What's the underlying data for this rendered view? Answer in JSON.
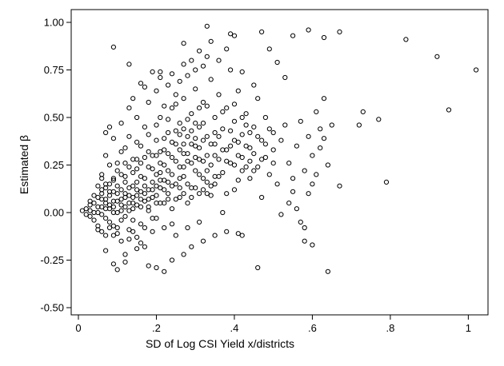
{
  "chart_data": {
    "type": "scatter",
    "title": "",
    "xlabel": "SD of Log CSI Yield x/districts",
    "ylabel": "Estimated β",
    "xlim": [
      0,
      1.03
    ],
    "ylim": [
      -0.5,
      1.0
    ],
    "x_ticks": [
      {
        "value": 0,
        "label": "0"
      },
      {
        "value": 0.2,
        "label": ".2"
      },
      {
        "value": 0.4,
        "label": ".4"
      },
      {
        "value": 0.6,
        "label": ".6"
      },
      {
        "value": 0.8,
        "label": ".8"
      },
      {
        "value": 1.0,
        "label": "1"
      }
    ],
    "y_ticks": [
      {
        "value": -0.5,
        "label": "-0.50"
      },
      {
        "value": -0.25,
        "label": "-0.25"
      },
      {
        "value": 0.0,
        "label": "0.00"
      },
      {
        "value": 0.25,
        "label": "0.25"
      },
      {
        "value": 0.5,
        "label": "0.50"
      },
      {
        "value": 0.75,
        "label": "0.75"
      },
      {
        "value": 1.0,
        "label": "1.00"
      }
    ],
    "grid": false,
    "marker": "hollow-circle",
    "marker_color": "#000000",
    "points": [
      [
        0.02,
        0.02
      ],
      [
        0.03,
        0.01
      ],
      [
        0.03,
        -0.02
      ],
      [
        0.04,
        0.05
      ],
      [
        0.04,
        -0.04
      ],
      [
        0.05,
        0.08
      ],
      [
        0.05,
        0.0
      ],
      [
        0.05,
        -0.07
      ],
      [
        0.06,
        0.12
      ],
      [
        0.06,
        0.03
      ],
      [
        0.06,
        -0.1
      ],
      [
        0.06,
        0.2
      ],
      [
        0.07,
        0.05
      ],
      [
        0.07,
        -0.03
      ],
      [
        0.07,
        0.3
      ],
      [
        0.07,
        0.15
      ],
      [
        0.08,
        0.09
      ],
      [
        0.08,
        -0.05
      ],
      [
        0.08,
        0.02
      ],
      [
        0.08,
        0.25
      ],
      [
        0.09,
        0.11
      ],
      [
        0.09,
        -0.12
      ],
      [
        0.09,
        0.06
      ],
      [
        0.09,
        0.18
      ],
      [
        0.1,
        0.0
      ],
      [
        0.1,
        0.14
      ],
      [
        0.1,
        -0.08
      ],
      [
        0.1,
        0.22
      ],
      [
        0.11,
        0.07
      ],
      [
        0.11,
        -0.15
      ],
      [
        0.11,
        0.32
      ],
      [
        0.11,
        0.04
      ],
      [
        0.12,
        0.1
      ],
      [
        0.12,
        -0.02
      ],
      [
        0.12,
        0.19
      ],
      [
        0.12,
        0.26
      ],
      [
        0.13,
        0.05
      ],
      [
        0.13,
        -0.09
      ],
      [
        0.13,
        0.13
      ],
      [
        0.13,
        0.4
      ],
      [
        0.14,
        0.08
      ],
      [
        0.14,
        0.21
      ],
      [
        0.14,
        -0.04
      ],
      [
        0.14,
        0.02
      ],
      [
        0.15,
        0.16
      ],
      [
        0.15,
        -0.13
      ],
      [
        0.15,
        0.28
      ],
      [
        0.15,
        0.09
      ],
      [
        0.16,
        0.03
      ],
      [
        0.16,
        0.11
      ],
      [
        0.16,
        0.35
      ],
      [
        0.16,
        -0.06
      ],
      [
        0.17,
        0.18
      ],
      [
        0.17,
        0.06
      ],
      [
        0.17,
        0.45
      ],
      [
        0.17,
        -0.18
      ],
      [
        0.18,
        0.12
      ],
      [
        0.18,
        0.24
      ],
      [
        0.18,
        0.01
      ],
      [
        0.19,
        0.3
      ],
      [
        0.19,
        0.08
      ],
      [
        0.19,
        -0.1
      ],
      [
        0.2,
        0.2
      ],
      [
        0.2,
        0.14
      ],
      [
        0.2,
        0.38
      ],
      [
        0.2,
        -0.03
      ],
      [
        0.21,
        0.26
      ],
      [
        0.21,
        0.05
      ],
      [
        0.21,
        0.5
      ],
      [
        0.22,
        0.17
      ],
      [
        0.22,
        -0.08
      ],
      [
        0.22,
        0.33
      ],
      [
        0.23,
        0.1
      ],
      [
        0.23,
        0.42
      ],
      [
        0.23,
        0.22
      ],
      [
        0.24,
        0.02
      ],
      [
        0.24,
        0.29
      ],
      [
        0.24,
        0.55
      ],
      [
        0.25,
        0.15
      ],
      [
        0.25,
        0.36
      ],
      [
        0.25,
        -0.12
      ],
      [
        0.26,
        0.24
      ],
      [
        0.26,
        0.47
      ],
      [
        0.26,
        0.08
      ],
      [
        0.27,
        0.31
      ],
      [
        0.27,
        0.6
      ],
      [
        0.27,
        0.19
      ],
      [
        0.28,
        0.4
      ],
      [
        0.28,
        0.05
      ],
      [
        0.28,
        0.27
      ],
      [
        0.29,
        0.52
      ],
      [
        0.29,
        0.13
      ],
      [
        0.3,
        0.35
      ],
      [
        0.3,
        0.22
      ],
      [
        0.3,
        0.65
      ],
      [
        0.31,
        0.28
      ],
      [
        0.31,
        0.45
      ],
      [
        0.31,
        -0.05
      ],
      [
        0.32,
        0.18
      ],
      [
        0.32,
        0.58
      ],
      [
        0.33,
        0.3
      ],
      [
        0.33,
        0.4
      ],
      [
        0.33,
        0.1
      ],
      [
        0.34,
        0.25
      ],
      [
        0.34,
        0.7
      ],
      [
        0.35,
        0.36
      ],
      [
        0.35,
        0.15
      ],
      [
        0.35,
        0.5
      ],
      [
        0.36,
        0.28
      ],
      [
        0.36,
        0.62
      ],
      [
        0.37,
        0.21
      ],
      [
        0.37,
        0.44
      ],
      [
        0.37,
        0.0
      ],
      [
        0.38,
        0.33
      ],
      [
        0.38,
        0.55
      ],
      [
        0.39,
        0.26
      ],
      [
        0.39,
        0.75
      ],
      [
        0.4,
        0.38
      ],
      [
        0.4,
        0.12
      ],
      [
        0.4,
        0.48
      ],
      [
        0.41,
        0.3
      ],
      [
        0.41,
        0.64
      ],
      [
        0.42,
        0.22
      ],
      [
        0.42,
        0.41
      ],
      [
        0.42,
        -0.12
      ],
      [
        0.43,
        0.35
      ],
      [
        0.43,
        0.52
      ],
      [
        0.44,
        0.27
      ],
      [
        0.44,
        0.18
      ],
      [
        0.45,
        0.45
      ],
      [
        0.45,
        0.31
      ],
      [
        0.46,
        0.6
      ],
      [
        0.46,
        0.24
      ],
      [
        0.47,
        0.38
      ],
      [
        0.47,
        0.08
      ],
      [
        0.48,
        0.29
      ],
      [
        0.48,
        0.5
      ],
      [
        0.49,
        0.2
      ],
      [
        0.5,
        0.42
      ],
      [
        0.5,
        0.33
      ],
      [
        0.51,
        0.15
      ],
      [
        0.52,
        0.38
      ],
      [
        0.53,
        0.46
      ],
      [
        0.54,
        0.26
      ],
      [
        0.55,
        0.11
      ],
      [
        0.56,
        0.35
      ],
      [
        0.57,
        0.48
      ],
      [
        0.58,
        0.22
      ],
      [
        0.59,
        0.4
      ],
      [
        0.6,
        0.3
      ],
      [
        0.61,
        0.53
      ],
      [
        0.62,
        0.44
      ],
      [
        0.63,
        0.6
      ],
      [
        0.64,
        0.25
      ],
      [
        0.65,
        0.46
      ],
      [
        0.67,
        0.14
      ],
      [
        0.72,
        0.46
      ],
      [
        0.73,
        0.53
      ],
      [
        0.77,
        0.49
      ],
      [
        0.79,
        0.16
      ],
      [
        0.01,
        0.01
      ],
      [
        0.02,
        -0.01
      ],
      [
        0.03,
        0.04
      ],
      [
        0.04,
        0.0
      ],
      [
        0.05,
        0.03
      ],
      [
        0.06,
        -0.01
      ],
      [
        0.07,
        0.07
      ],
      [
        0.08,
        0.04
      ],
      [
        0.09,
        0.0
      ],
      [
        0.1,
        0.06
      ],
      [
        0.11,
        0.12
      ],
      [
        0.12,
        0.03
      ],
      [
        0.13,
        0.09
      ],
      [
        0.14,
        0.14
      ],
      [
        0.15,
        0.04
      ],
      [
        0.16,
        0.19
      ],
      [
        0.17,
        0.1
      ],
      [
        0.18,
        0.07
      ],
      [
        0.19,
        0.16
      ],
      [
        0.2,
        0.09
      ],
      [
        0.21,
        0.13
      ],
      [
        0.22,
        0.25
      ],
      [
        0.23,
        0.16
      ],
      [
        0.24,
        0.2
      ],
      [
        0.25,
        0.27
      ],
      [
        0.26,
        0.18
      ],
      [
        0.27,
        0.24
      ],
      [
        0.28,
        0.31
      ],
      [
        0.29,
        0.26
      ],
      [
        0.3,
        0.29
      ],
      [
        0.31,
        0.34
      ],
      [
        0.32,
        0.27
      ],
      [
        0.33,
        0.22
      ],
      [
        0.34,
        0.36
      ],
      [
        0.35,
        0.3
      ],
      [
        0.36,
        0.4
      ],
      [
        0.37,
        0.33
      ],
      [
        0.38,
        0.27
      ],
      [
        0.39,
        0.43
      ],
      [
        0.4,
        0.25
      ],
      [
        0.41,
        0.37
      ],
      [
        0.42,
        0.29
      ],
      [
        0.43,
        0.46
      ],
      [
        0.44,
        0.34
      ],
      [
        0.45,
        0.22
      ],
      [
        0.46,
        0.4
      ],
      [
        0.47,
        0.28
      ],
      [
        0.48,
        0.36
      ],
      [
        0.49,
        0.44
      ],
      [
        0.5,
        0.26
      ],
      [
        0.05,
        0.14
      ],
      [
        0.06,
        0.18
      ],
      [
        0.07,
        -0.12
      ],
      [
        0.08,
        0.15
      ],
      [
        0.09,
        -0.07
      ],
      [
        0.1,
        0.26
      ],
      [
        0.11,
        -0.04
      ],
      [
        0.12,
        0.34
      ],
      [
        0.13,
        -0.14
      ],
      [
        0.14,
        0.28
      ],
      [
        0.15,
        0.37
      ],
      [
        0.16,
        -0.16
      ],
      [
        0.17,
        0.29
      ],
      [
        0.18,
        0.41
      ],
      [
        0.19,
        -0.03
      ],
      [
        0.2,
        0.46
      ],
      [
        0.21,
        0.32
      ],
      [
        0.22,
        0.05
      ],
      [
        0.23,
        0.49
      ],
      [
        0.24,
        -0.06
      ],
      [
        0.25,
        0.57
      ],
      [
        0.26,
        0.33
      ],
      [
        0.27,
        0.44
      ],
      [
        0.28,
        -0.08
      ],
      [
        0.29,
        0.36
      ],
      [
        0.3,
        0.47
      ],
      [
        0.31,
        0.2
      ],
      [
        0.32,
        0.38
      ],
      [
        0.33,
        0.56
      ],
      [
        0.34,
        0.14
      ],
      [
        0.35,
        0.42
      ],
      [
        0.36,
        0.19
      ],
      [
        0.37,
        0.53
      ],
      [
        0.38,
        0.1
      ],
      [
        0.39,
        0.35
      ],
      [
        0.4,
        0.57
      ],
      [
        0.41,
        0.17
      ],
      [
        0.42,
        0.5
      ],
      [
        0.43,
        0.24
      ],
      [
        0.44,
        0.42
      ],
      [
        0.07,
        0.42
      ],
      [
        0.08,
        0.45
      ],
      [
        0.09,
        0.39
      ],
      [
        0.11,
        0.47
      ],
      [
        0.12,
        -0.26
      ],
      [
        0.13,
        0.55
      ],
      [
        0.14,
        0.6
      ],
      [
        0.15,
        0.5
      ],
      [
        0.16,
        0.68
      ],
      [
        0.17,
        0.66
      ],
      [
        0.18,
        0.58
      ],
      [
        0.19,
        0.74
      ],
      [
        0.2,
        0.64
      ],
      [
        0.21,
        0.71
      ],
      [
        0.22,
        0.56
      ],
      [
        0.23,
        0.67
      ],
      [
        0.24,
        0.73
      ],
      [
        0.25,
        0.62
      ],
      [
        0.26,
        0.69
      ],
      [
        0.27,
        0.78
      ],
      [
        0.28,
        0.72
      ],
      [
        0.29,
        0.8
      ],
      [
        0.3,
        0.75
      ],
      [
        0.31,
        0.85
      ],
      [
        0.32,
        0.77
      ],
      [
        0.33,
        0.82
      ],
      [
        0.34,
        0.9
      ],
      [
        0.36,
        0.8
      ],
      [
        0.38,
        0.86
      ],
      [
        0.4,
        0.93
      ],
      [
        0.09,
        0.87
      ],
      [
        0.13,
        0.78
      ],
      [
        0.21,
        0.74
      ],
      [
        0.27,
        0.89
      ],
      [
        0.33,
        0.98
      ],
      [
        0.39,
        0.94
      ],
      [
        0.47,
        0.95
      ],
      [
        0.55,
        0.93
      ],
      [
        0.59,
        0.96
      ],
      [
        0.63,
        0.92
      ],
      [
        0.67,
        0.95
      ],
      [
        0.84,
        0.91
      ],
      [
        0.92,
        0.82
      ],
      [
        0.95,
        0.54
      ],
      [
        1.02,
        0.75
      ],
      [
        0.49,
        0.86
      ],
      [
        0.51,
        0.79
      ],
      [
        0.42,
        0.74
      ],
      [
        0.45,
        0.67
      ],
      [
        0.53,
        0.71
      ],
      [
        0.07,
        -0.2
      ],
      [
        0.09,
        -0.27
      ],
      [
        0.1,
        -0.3
      ],
      [
        0.12,
        -0.22
      ],
      [
        0.15,
        -0.19
      ],
      [
        0.18,
        -0.28
      ],
      [
        0.2,
        -0.29
      ],
      [
        0.22,
        -0.31
      ],
      [
        0.24,
        -0.25
      ],
      [
        0.27,
        -0.22
      ],
      [
        0.29,
        -0.18
      ],
      [
        0.32,
        -0.15
      ],
      [
        0.35,
        -0.12
      ],
      [
        0.38,
        -0.1
      ],
      [
        0.41,
        -0.11
      ],
      [
        0.46,
        -0.29
      ],
      [
        0.58,
        -0.15
      ],
      [
        0.6,
        -0.17
      ],
      [
        0.64,
        -0.31
      ],
      [
        0.52,
        -0.01
      ],
      [
        0.54,
        0.05
      ],
      [
        0.56,
        0.02
      ],
      [
        0.57,
        -0.05
      ],
      [
        0.59,
        0.1
      ],
      [
        0.61,
        0.2
      ],
      [
        0.62,
        0.34
      ],
      [
        0.63,
        0.39
      ],
      [
        0.58,
        -0.08
      ],
      [
        0.55,
        0.18
      ],
      [
        0.6,
        0.15
      ],
      [
        0.03,
        0.06
      ],
      [
        0.04,
        0.09
      ],
      [
        0.05,
        -0.09
      ],
      [
        0.06,
        0.1
      ],
      [
        0.07,
        0.13
      ],
      [
        0.08,
        -0.08
      ],
      [
        0.09,
        0.17
      ],
      [
        0.1,
        -0.11
      ],
      [
        0.11,
        0.2
      ],
      [
        0.12,
        0.16
      ],
      [
        0.13,
        0.24
      ],
      [
        0.14,
        -0.1
      ],
      [
        0.15,
        0.23
      ],
      [
        0.16,
        0.26
      ],
      [
        0.17,
        -0.08
      ],
      [
        0.18,
        0.32
      ],
      [
        0.19,
        0.23
      ],
      [
        0.2,
        0.3
      ],
      [
        0.21,
        0.21
      ],
      [
        0.22,
        0.39
      ],
      [
        0.23,
        0.31
      ],
      [
        0.24,
        0.37
      ],
      [
        0.25,
        0.43
      ],
      [
        0.26,
        0.41
      ],
      [
        0.27,
        0.36
      ],
      [
        0.28,
        0.49
      ],
      [
        0.29,
        0.43
      ],
      [
        0.3,
        0.39
      ],
      [
        0.31,
        0.55
      ],
      [
        0.32,
        0.47
      ],
      [
        0.06,
        0.07
      ],
      [
        0.07,
        0.02
      ],
      [
        0.08,
        0.11
      ],
      [
        0.09,
        0.03
      ],
      [
        0.1,
        0.1
      ],
      [
        0.11,
        0.01
      ],
      [
        0.12,
        0.08
      ],
      [
        0.13,
        0.01
      ],
      [
        0.14,
        0.05
      ],
      [
        0.15,
        0.12
      ],
      [
        0.16,
        0.07
      ],
      [
        0.17,
        0.14
      ],
      [
        0.18,
        0.03
      ],
      [
        0.19,
        0.12
      ],
      [
        0.2,
        0.05
      ],
      [
        0.21,
        0.17
      ],
      [
        0.22,
        0.12
      ],
      [
        0.23,
        0.07
      ],
      [
        0.24,
        0.14
      ],
      [
        0.25,
        0.07
      ],
      [
        0.26,
        0.13
      ],
      [
        0.27,
        0.1
      ],
      [
        0.28,
        0.15
      ],
      [
        0.29,
        0.08
      ],
      [
        0.3,
        0.13
      ],
      [
        0.31,
        0.1
      ],
      [
        0.32,
        0.12
      ],
      [
        0.33,
        0.16
      ],
      [
        0.34,
        0.09
      ],
      [
        0.35,
        0.19
      ]
    ]
  }
}
